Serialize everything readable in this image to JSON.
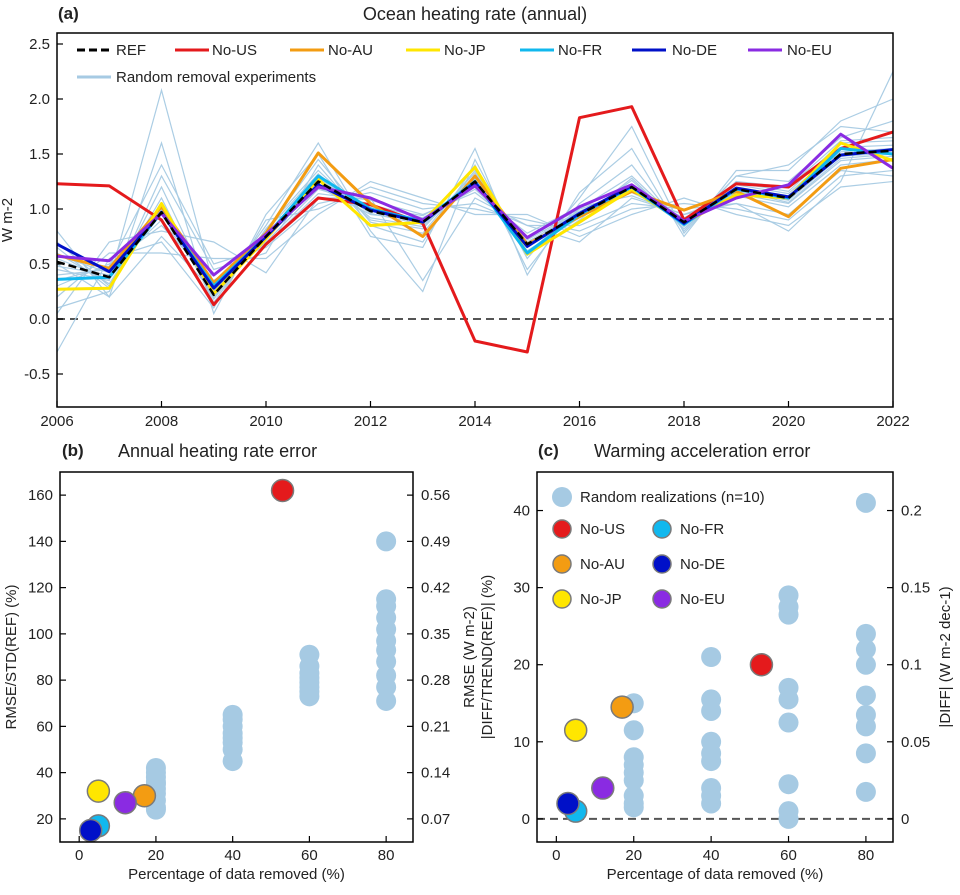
{
  "chart_data": [
    {
      "id": "a",
      "type": "line",
      "panel_label": "(a)",
      "title": "Ocean heating rate (annual)",
      "xlabel": "",
      "ylabel": "W m-2",
      "xlim": [
        2006,
        2022
      ],
      "ylim": [
        -0.8,
        2.6
      ],
      "xticks": [
        2006,
        2008,
        2010,
        2012,
        2014,
        2016,
        2018,
        2020,
        2022
      ],
      "yticks": [
        -0.5,
        0.0,
        0.5,
        1.0,
        1.5,
        2.0,
        2.5
      ],
      "x": [
        2006,
        2007,
        2008,
        2009,
        2010,
        2011,
        2012,
        2013,
        2014,
        2015,
        2016,
        2017,
        2018,
        2019,
        2020,
        2021,
        2022
      ],
      "reference_line": 0,
      "series": [
        {
          "name": "REF",
          "color": "#000000",
          "dash": true,
          "values": [
            0.52,
            0.38,
            0.97,
            0.22,
            0.75,
            1.25,
            0.98,
            0.88,
            1.25,
            0.68,
            0.95,
            1.2,
            0.88,
            1.18,
            1.1,
            1.5,
            1.53
          ]
        },
        {
          "name": "No-US",
          "color": "#e41a1c",
          "values": [
            1.23,
            1.21,
            0.9,
            0.13,
            0.68,
            1.1,
            1.04,
            0.87,
            -0.2,
            -0.3,
            1.83,
            1.93,
            0.9,
            1.23,
            1.2,
            1.55,
            1.7
          ]
        },
        {
          "name": "No-AU",
          "color": "#f39c12",
          "values": [
            0.58,
            0.46,
            1.02,
            0.33,
            0.78,
            1.51,
            1.05,
            0.75,
            1.3,
            0.68,
            0.93,
            1.16,
            0.99,
            1.16,
            0.93,
            1.37,
            1.45
          ]
        },
        {
          "name": "No-JP",
          "color": "#ffe600",
          "values": [
            0.27,
            0.28,
            1.05,
            0.23,
            0.73,
            1.27,
            0.85,
            0.88,
            1.38,
            0.59,
            0.88,
            1.18,
            0.87,
            1.13,
            1.1,
            1.6,
            1.44
          ]
        },
        {
          "name": "No-FR",
          "color": "#11b8ee",
          "values": [
            0.36,
            0.38,
            0.97,
            0.3,
            0.75,
            1.3,
            1.0,
            0.89,
            1.25,
            0.6,
            0.95,
            1.2,
            0.86,
            1.18,
            1.1,
            1.55,
            1.5
          ]
        },
        {
          "name": "No-DE",
          "color": "#0010c8",
          "values": [
            0.68,
            0.43,
            0.97,
            0.28,
            0.75,
            1.22,
            0.99,
            0.88,
            1.24,
            0.66,
            0.96,
            1.21,
            0.87,
            1.19,
            1.11,
            1.49,
            1.54
          ]
        },
        {
          "name": "No-EU",
          "color": "#8a2be2",
          "values": [
            0.57,
            0.53,
            0.96,
            0.4,
            0.77,
            1.2,
            1.1,
            0.9,
            1.21,
            0.74,
            1.02,
            1.22,
            0.89,
            1.1,
            1.22,
            1.68,
            1.37
          ]
        }
      ],
      "random_series": {
        "name": "Random removal experiments",
        "color": "#a6cae3",
        "values": [
          [
            0.55,
            0.36,
            1.0,
            0.2,
            0.76,
            1.28,
            0.96,
            0.86,
            1.27,
            0.66,
            0.94,
            1.22,
            0.86,
            1.2,
            1.12,
            1.52,
            1.55
          ],
          [
            0.48,
            0.4,
            0.95,
            0.25,
            0.73,
            1.22,
            1.0,
            0.9,
            1.22,
            0.7,
            0.97,
            1.18,
            0.9,
            1.16,
            1.08,
            1.48,
            1.51
          ],
          [
            0.6,
            0.32,
            1.05,
            0.18,
            0.8,
            1.32,
            0.92,
            0.84,
            1.3,
            0.62,
            0.92,
            1.26,
            0.84,
            1.22,
            1.14,
            1.56,
            1.58
          ],
          [
            0.4,
            0.45,
            0.9,
            0.3,
            0.7,
            1.18,
            1.04,
            0.92,
            1.18,
            0.74,
            1.0,
            1.15,
            0.92,
            1.14,
            1.05,
            1.44,
            1.48
          ],
          [
            0.7,
            0.3,
            1.1,
            0.15,
            0.82,
            1.35,
            0.9,
            0.82,
            1.33,
            0.58,
            0.9,
            1.28,
            0.82,
            1.24,
            1.16,
            1.6,
            1.62
          ],
          [
            0.3,
            0.5,
            0.85,
            0.35,
            0.68,
            1.14,
            1.08,
            0.95,
            1.15,
            0.78,
            1.02,
            1.12,
            0.95,
            1.12,
            1.02,
            1.4,
            1.45
          ],
          [
            0.1,
            0.25,
            1.3,
            0.45,
            0.6,
            1.4,
            0.85,
            0.7,
            1.4,
            0.45,
            1.05,
            1.4,
            0.8,
            1.3,
            1.25,
            1.65,
            1.8
          ],
          [
            -0.3,
            0.55,
            0.7,
            0.1,
            0.9,
            1.0,
            1.2,
            1.05,
            1.0,
            0.9,
            0.8,
            1.0,
            1.05,
            1.0,
            0.9,
            1.3,
            1.35
          ],
          [
            0.8,
            0.2,
            1.6,
            0.05,
            0.95,
            1.5,
            0.75,
            0.65,
            1.55,
            0.4,
            1.15,
            1.55,
            0.75,
            1.35,
            1.35,
            1.8,
            2.0
          ],
          [
            0.2,
            0.6,
            0.6,
            0.55,
            0.55,
            0.95,
            1.25,
            1.1,
            0.95,
            0.95,
            0.75,
            0.95,
            1.1,
            0.95,
            0.85,
            1.2,
            1.25
          ],
          [
            0.45,
            0.35,
            2.08,
            0.3,
            0.75,
            1.2,
            0.95,
            0.9,
            1.25,
            0.65,
            0.95,
            1.2,
            0.88,
            1.15,
            1.1,
            1.5,
            1.55
          ],
          [
            0.05,
            0.7,
            0.8,
            0.7,
            0.42,
            1.1,
            1.1,
            0.35,
            1.1,
            0.85,
            0.7,
            1.1,
            0.95,
            1.05,
            0.8,
            1.25,
            2.25
          ],
          [
            0.65,
            0.28,
            1.2,
            0.2,
            0.85,
            1.6,
            0.8,
            0.25,
            1.45,
            0.55,
            1.1,
            1.75,
            0.78,
            1.3,
            1.4,
            1.75,
            1.7
          ],
          [
            0.35,
            0.48,
            1.4,
            0.5,
            0.65,
            1.05,
            1.15,
            1.0,
            1.05,
            0.85,
            0.85,
            1.05,
            1.0,
            1.05,
            0.95,
            1.35,
            1.3
          ],
          [
            0.5,
            0.2,
            0.75,
            0.25,
            0.8,
            1.45,
            0.88,
            0.78,
            1.35,
            0.6,
            1.0,
            1.3,
            0.85,
            1.25,
            1.2,
            1.62,
            1.65
          ],
          [
            0.58,
            0.42,
            0.98,
            0.28,
            0.72,
            1.25,
            1.02,
            0.94,
            1.2,
            0.72,
            0.98,
            1.18,
            0.9,
            1.17,
            1.06,
            1.46,
            1.5
          ]
        ]
      }
    },
    {
      "id": "b",
      "type": "scatter",
      "panel_label": "(b)",
      "title": "Annual heating rate error",
      "xlabel": "Percentage of data removed (%)",
      "ylabel": "RMSE/STD(REF) (%)",
      "y2label": "RMSE (W m-2)",
      "xlim": [
        -5,
        87
      ],
      "ylim": [
        10,
        170
      ],
      "xticks": [
        0,
        20,
        40,
        60,
        80
      ],
      "yticks": [
        20,
        40,
        60,
        80,
        100,
        120,
        140,
        160
      ],
      "y2ticks": [
        "0.07",
        "0.14",
        "0.21",
        "0.28",
        "0.35",
        "0.42",
        "0.49",
        "0.56"
      ],
      "random_points": {
        "color": "#a6cae3",
        "points": [
          [
            20,
            25
          ],
          [
            20,
            28
          ],
          [
            20,
            31
          ],
          [
            20,
            33
          ],
          [
            20,
            35
          ],
          [
            20,
            36
          ],
          [
            20,
            38
          ],
          [
            20,
            40
          ],
          [
            20,
            42
          ],
          [
            20,
            24
          ],
          [
            40,
            45
          ],
          [
            40,
            50
          ],
          [
            40,
            53
          ],
          [
            40,
            55
          ],
          [
            40,
            57
          ],
          [
            40,
            60
          ],
          [
            40,
            63
          ],
          [
            40,
            65
          ],
          [
            60,
            73
          ],
          [
            60,
            75
          ],
          [
            60,
            77
          ],
          [
            60,
            79
          ],
          [
            60,
            81
          ],
          [
            60,
            83
          ],
          [
            60,
            86
          ],
          [
            60,
            91
          ],
          [
            80,
            71
          ],
          [
            80,
            77
          ],
          [
            80,
            82
          ],
          [
            80,
            88
          ],
          [
            80,
            93
          ],
          [
            80,
            97
          ],
          [
            80,
            102
          ],
          [
            80,
            107
          ],
          [
            80,
            112
          ],
          [
            80,
            115
          ],
          [
            80,
            140
          ]
        ]
      },
      "experiments": [
        {
          "name": "No-US",
          "color": "#e41a1c",
          "x": 53,
          "y": 162
        },
        {
          "name": "No-AU",
          "color": "#f39c12",
          "x": 17,
          "y": 30
        },
        {
          "name": "No-JP",
          "color": "#ffe600",
          "x": 5,
          "y": 32
        },
        {
          "name": "No-FR",
          "color": "#11b8ee",
          "x": 5,
          "y": 17
        },
        {
          "name": "No-DE",
          "color": "#0010c8",
          "x": 3,
          "y": 15
        },
        {
          "name": "No-EU",
          "color": "#8a2be2",
          "x": 12,
          "y": 27
        }
      ]
    },
    {
      "id": "c",
      "type": "scatter",
      "panel_label": "(c)",
      "title": "Warming acceleration error",
      "xlabel": "Percentage of data removed (%)",
      "ylabel": "|DIFF/TREND(REF)| (%)",
      "y2label": "|DIFF| (W m-2 dec-1)",
      "xlim": [
        -5,
        87
      ],
      "ylim": [
        -3,
        45
      ],
      "xticks": [
        0,
        20,
        40,
        60,
        80
      ],
      "yticks": [
        0,
        10,
        20,
        30,
        40
      ],
      "y2ticks": [
        "0",
        "0.05",
        "0.1",
        "0.15",
        "0.2"
      ],
      "reference_line": 0,
      "legend": {
        "random_label": "Random realizations (n=10)",
        "items": [
          "No-US",
          "No-FR",
          "No-AU",
          "No-DE",
          "No-JP",
          "No-EU"
        ]
      },
      "random_points": {
        "color": "#a6cae3",
        "points": [
          [
            20,
            15
          ],
          [
            20,
            11.5
          ],
          [
            20,
            8
          ],
          [
            20,
            7
          ],
          [
            20,
            6
          ],
          [
            20,
            5
          ],
          [
            20,
            3
          ],
          [
            20,
            2
          ],
          [
            20,
            1.5
          ],
          [
            40,
            21
          ],
          [
            40,
            15.5
          ],
          [
            40,
            14
          ],
          [
            40,
            10
          ],
          [
            40,
            8.5
          ],
          [
            40,
            7.5
          ],
          [
            40,
            4
          ],
          [
            40,
            3
          ],
          [
            40,
            2
          ],
          [
            60,
            29
          ],
          [
            60,
            27.5
          ],
          [
            60,
            26.5
          ],
          [
            60,
            17
          ],
          [
            60,
            15.5
          ],
          [
            60,
            12.5
          ],
          [
            60,
            4.5
          ],
          [
            60,
            1
          ],
          [
            60,
            0
          ],
          [
            80,
            41
          ],
          [
            80,
            24
          ],
          [
            80,
            22
          ],
          [
            80,
            20
          ],
          [
            80,
            16
          ],
          [
            80,
            13.5
          ],
          [
            80,
            12
          ],
          [
            80,
            8.5
          ],
          [
            80,
            3.5
          ]
        ]
      },
      "experiments": [
        {
          "name": "No-US",
          "color": "#e41a1c",
          "x": 53,
          "y": 20
        },
        {
          "name": "No-AU",
          "color": "#f39c12",
          "x": 17,
          "y": 14.5
        },
        {
          "name": "No-JP",
          "color": "#ffe600",
          "x": 5,
          "y": 11.5
        },
        {
          "name": "No-FR",
          "color": "#11b8ee",
          "x": 5,
          "y": 1
        },
        {
          "name": "No-DE",
          "color": "#0010c8",
          "x": 3,
          "y": 2
        },
        {
          "name": "No-EU",
          "color": "#8a2be2",
          "x": 12,
          "y": 4
        }
      ]
    }
  ]
}
